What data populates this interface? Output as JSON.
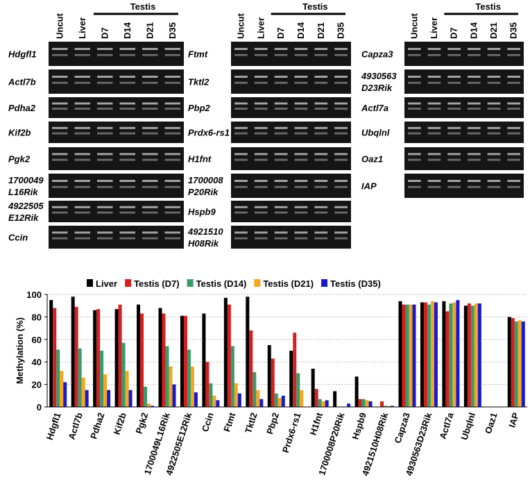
{
  "gels": {
    "lanes": [
      "Uncut",
      "Liver",
      "D7",
      "D14",
      "D21",
      "D35"
    ],
    "group_label": "Testis",
    "columns": [
      {
        "labels": [
          [
            "Hdgfl1"
          ],
          [
            "Actl7b"
          ],
          [
            "Pdha2"
          ],
          [
            "Kif2b"
          ],
          [
            "Pgk2"
          ],
          [
            "1700049",
            "L16Rik"
          ],
          [
            "4922505",
            "E12Rik"
          ],
          [
            "Ccin"
          ]
        ]
      },
      {
        "labels": [
          [
            "Ftmt"
          ],
          [
            "Tktl2"
          ],
          [
            "Pbp2"
          ],
          [
            "Prdx6-rs1"
          ],
          [
            "H1fnt"
          ],
          [
            "1700008",
            "P20Rik"
          ],
          [
            "Hspb9"
          ],
          [
            "4921510",
            "H08Rik"
          ]
        ]
      },
      {
        "labels": [
          [
            "Capza3"
          ],
          [
            "4930563",
            "D23Rik"
          ],
          [
            "Actl7a"
          ],
          [
            "Ubqlnl"
          ],
          [
            "Oaz1"
          ],
          [
            "IAP"
          ]
        ]
      }
    ]
  },
  "chart_data": {
    "type": "bar",
    "y_label": "Methylation (%)",
    "categories": [
      "Hdgfl1",
      "Actl7b",
      "Pdha2",
      "Kif2b",
      "Pgk2",
      "1700049L16Rik",
      "4922505E12Rik",
      "Ccin",
      "Ftmt",
      "Tktl2",
      "Pbp2",
      "Prdx6-rs1",
      "H1fnt",
      "1700008P20Rik",
      "Hspb9",
      "4921510H08Rik",
      "Capza3",
      "4930563D23Rik",
      "Actl7a",
      "Ubqlnl",
      "Oaz1",
      "IAP"
    ],
    "series": [
      {
        "name": "Liver",
        "color": "#000000",
        "values": [
          95,
          98,
          86,
          87,
          91,
          88,
          81,
          83,
          97,
          98,
          55,
          50,
          34,
          14,
          27,
          0,
          94,
          93,
          94,
          90,
          0,
          80
        ]
      },
      {
        "name": "Testis (D7)",
        "color": "#d42020",
        "values": [
          88,
          89,
          87,
          91,
          83,
          83,
          81,
          40,
          91,
          68,
          43,
          66,
          16,
          0,
          7,
          5,
          91,
          93,
          85,
          92,
          0,
          79
        ]
      },
      {
        "name": "Testis (D14)",
        "color": "#3a9a6a",
        "values": [
          51,
          52,
          50,
          57,
          18,
          54,
          51,
          21,
          54,
          31,
          12,
          30,
          7,
          0,
          7,
          1,
          91,
          91,
          92,
          90,
          0,
          76
        ]
      },
      {
        "name": "Testis (D21)",
        "color": "#f5a623",
        "values": [
          32,
          26,
          29,
          32,
          3,
          36,
          36,
          10,
          21,
          15,
          8,
          15,
          5,
          0,
          6,
          1,
          91,
          94,
          93,
          92,
          0,
          77
        ]
      },
      {
        "name": "Testis (D35)",
        "color": "#1a1acc",
        "values": [
          22,
          15,
          15,
          15,
          1,
          20,
          13,
          6,
          12,
          7,
          10,
          0,
          6,
          3,
          5,
          1,
          91,
          93,
          95,
          92,
          0,
          76
        ]
      }
    ],
    "ylim": [
      0,
      100
    ],
    "yticks": [
      0,
      20,
      40,
      60,
      80,
      100
    ],
    "grid": true
  }
}
